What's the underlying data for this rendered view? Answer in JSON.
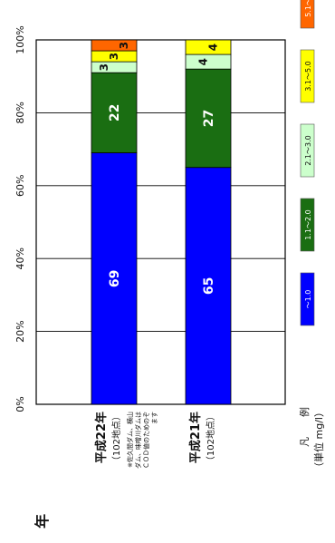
{
  "chart_data": {
    "type": "bar",
    "orientation": "horizontal-stacked-percent (rendered rotated 90°)",
    "title": "年",
    "categories": [
      {
        "name": "平成22年",
        "subtitle": "（102地点）",
        "note": "※佐久間ダム、横山ダム、味噌川ダムはＣＯＤ値のためのぞます"
      },
      {
        "name": "平成21年",
        "subtitle": "（102地点）",
        "note": ""
      }
    ],
    "series": [
      {
        "name": "～1.0",
        "color": "#0000ff",
        "values": [
          69,
          65
        ]
      },
      {
        "name": "1.1～2.0",
        "color": "#1a6e12",
        "values": [
          22,
          27
        ]
      },
      {
        "name": "2.1～3.0",
        "color": "#ccffcc",
        "values": [
          3,
          4
        ]
      },
      {
        "name": "3.1～5.0",
        "color": "#ffff00",
        "values": [
          3,
          4
        ]
      },
      {
        "name": "5.1～8.0",
        "color": "#ff6600",
        "values": [
          3,
          0
        ]
      }
    ],
    "axis": {
      "min": 0,
      "max": 100,
      "ticks": [
        "0%",
        "20%",
        "40%",
        "60%",
        "80%",
        "100%"
      ]
    },
    "grid": true,
    "legend": {
      "position": "bottom-right (rotated)",
      "title": "凡　　例",
      "unit": "（単位 mg/l）"
    }
  }
}
